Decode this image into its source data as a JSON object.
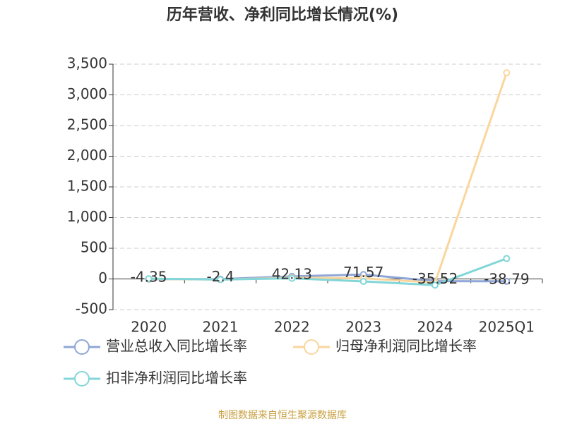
{
  "chart_data": {
    "type": "line",
    "title": "历年营收、净利同比增长情况(%)",
    "categories": [
      "2020",
      "2021",
      "2022",
      "2023",
      "2024",
      "2025Q1"
    ],
    "series": [
      {
        "name": "营业总收入同比增长率",
        "color": "#8fa6d6",
        "values": [
          -4.35,
          -2.4,
          42.13,
          71.57,
          -35.52,
          -38.79
        ]
      },
      {
        "name": "归母净利润同比增长率",
        "color": "#fad69e",
        "values": [
          0,
          -10,
          20,
          10,
          -60,
          3360
        ]
      },
      {
        "name": "扣非净利润同比增长率",
        "color": "#82d6d8",
        "values": [
          5,
          -10,
          10,
          -40,
          -100,
          333
        ]
      }
    ],
    "ylim": [
      -500,
      3500
    ],
    "yticks": [
      -500,
      0,
      500,
      {
        "value": 1000,
        "label": "1,000"
      },
      {
        "value": 1500,
        "label": "1,500"
      },
      {
        "value": 2000,
        "label": "2,000"
      },
      {
        "value": 2500,
        "label": "2,500"
      },
      {
        "value": 3000,
        "label": "3,000"
      },
      {
        "value": 3500,
        "label": "3,500"
      }
    ],
    "grid": true,
    "source": "制图数据来自恒生聚源数据库"
  }
}
